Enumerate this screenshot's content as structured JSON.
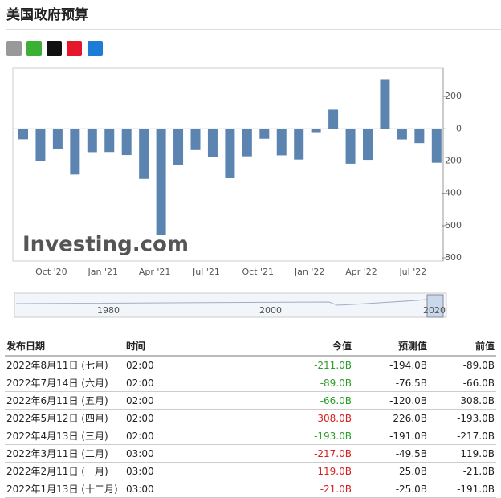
{
  "header": {
    "title": "美国政府预算"
  },
  "chart_data": {
    "type": "bar",
    "categories": [
      null,
      null,
      "Oct '20",
      null,
      null,
      "Jan '21",
      null,
      null,
      "Apr '21",
      null,
      null,
      "Jul '21",
      null,
      null,
      "Oct '21",
      null,
      null,
      "Jan '22",
      null,
      null,
      "Apr '22",
      null,
      null,
      "Jul '22",
      null
    ],
    "values": [
      -65,
      -200,
      -125,
      -284,
      -145,
      -144,
      -163,
      -311,
      -660,
      -226,
      -132,
      -174,
      -302,
      -171,
      -62,
      -165,
      -191,
      -21,
      119,
      -217,
      -193,
      308,
      -66,
      -89,
      -211
    ],
    "color": "#5b84b1",
    "ylim": [
      -820,
      375
    ],
    "yticks": [
      200,
      0,
      -200,
      -400,
      -600,
      -800
    ],
    "watermark": "Investing.com",
    "navigator_labels": [
      "1980",
      "2000",
      "2020"
    ]
  },
  "table": {
    "headers": [
      "发布日期",
      "时间",
      "今值",
      "预测值",
      "前值"
    ],
    "rows": [
      [
        "2022年8月11日 (七月)",
        "02:00",
        "-211.0B",
        "-194.0B",
        "-89.0B"
      ],
      [
        "2022年7月14日 (六月)",
        "02:00",
        "-89.0B",
        "-76.5B",
        "-66.0B"
      ],
      [
        "2022年6月11日 (五月)",
        "02:00",
        "-66.0B",
        "-120.0B",
        "308.0B"
      ],
      [
        "2022年5月12日 (四月)",
        "02:00",
        "308.0B",
        "226.0B",
        "-193.0B"
      ],
      [
        "2022年4月13日 (三月)",
        "02:00",
        "-193.0B",
        "-191.0B",
        "-217.0B"
      ],
      [
        "2022年3月11日 (二月)",
        "03:00",
        "-217.0B",
        "-49.5B",
        "119.0B"
      ],
      [
        "2022年2月11日 (一月)",
        "03:00",
        "119.0B",
        "25.0B",
        "-21.0B"
      ],
      [
        "2022年1月13日 (十二月)",
        "03:00",
        "-21.0B",
        "-25.0B",
        "-191.0B"
      ]
    ],
    "actual_colors": [
      "#2a9d2a",
      "#2a9d2a",
      "#2a9d2a",
      "#d62020",
      "#2a9d2a",
      "#d62020",
      "#d62020",
      "#d62020"
    ]
  }
}
